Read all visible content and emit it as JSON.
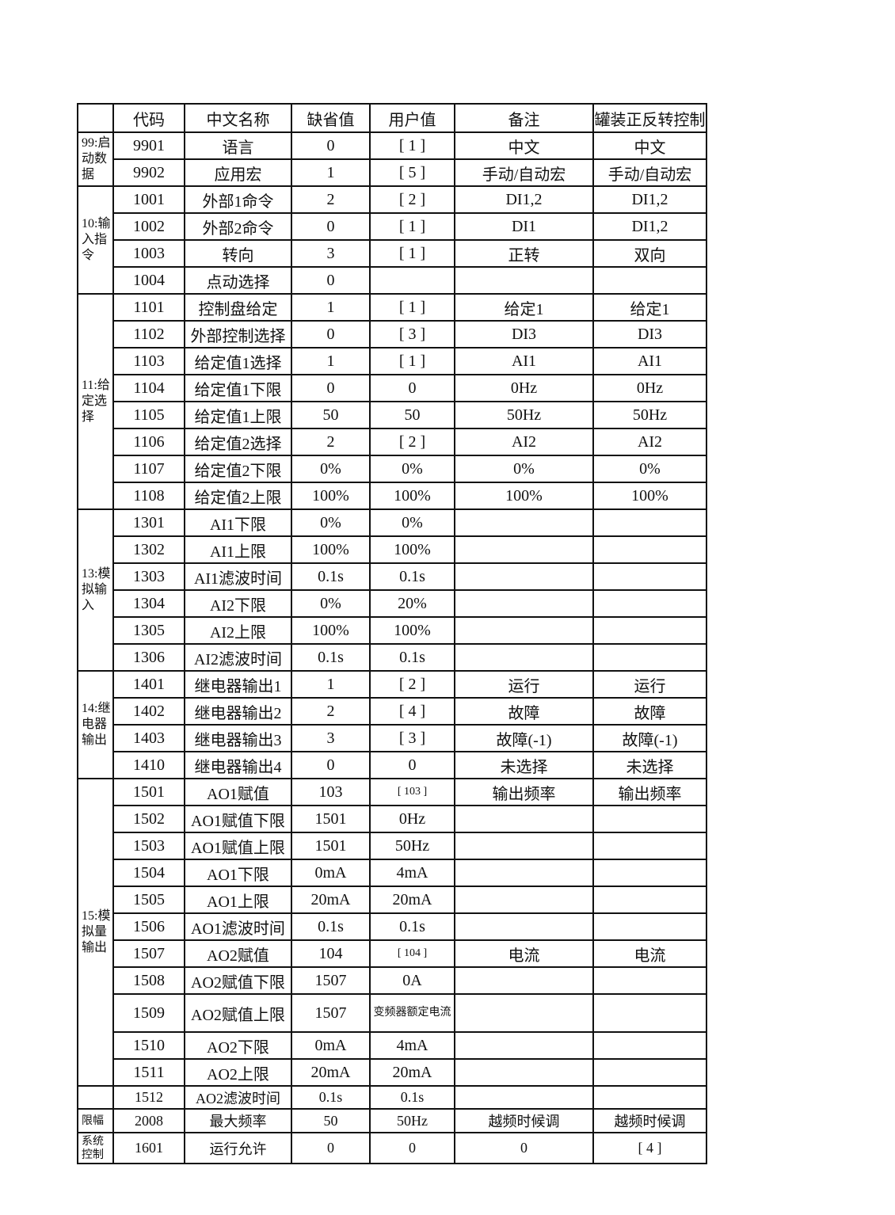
{
  "headers": [
    "",
    "代码",
    "中文名称",
    "缺省值",
    "用户值",
    "备注",
    "罐装正反转控制"
  ],
  "groups": [
    {
      "label": "99:启动数据",
      "rows": [
        [
          "9901",
          "语言",
          "0",
          "[ 1 ]",
          "中文",
          "中文"
        ],
        [
          "9902",
          "应用宏",
          "1",
          "[ 5 ]",
          "手动/自动宏",
          "手动/自动宏"
        ]
      ]
    },
    {
      "label": "10:输入指令",
      "rows": [
        [
          "1001",
          "外部1命令",
          "2",
          "[ 2 ]",
          "DI1,2",
          "DI1,2"
        ],
        [
          "1002",
          "外部2命令",
          "0",
          "[ 1 ]",
          "DI1",
          "DI1,2"
        ],
        [
          "1003",
          "转向",
          "3",
          "[ 1 ]",
          "正转",
          "双向"
        ],
        [
          "1004",
          "点动选择",
          "0",
          "",
          "",
          ""
        ]
      ]
    },
    {
      "label": "11:给定选择",
      "rows": [
        [
          "1101",
          "控制盘给定",
          "1",
          "[ 1 ]",
          "给定1",
          "给定1"
        ],
        [
          "1102",
          "外部控制选择",
          "0",
          "[ 3 ]",
          "DI3",
          "DI3"
        ],
        [
          "1103",
          "给定值1选择",
          "1",
          "[ 1 ]",
          "AI1",
          "AI1"
        ],
        [
          "1104",
          "给定值1下限",
          "0",
          "0",
          "0Hz",
          "0Hz"
        ],
        [
          "1105",
          "给定值1上限",
          "50",
          "50",
          "50Hz",
          "50Hz"
        ],
        [
          "1106",
          "给定值2选择",
          "2",
          "[ 2 ]",
          "AI2",
          "AI2"
        ],
        [
          "1107",
          "给定值2下限",
          "0%",
          "0%",
          "0%",
          "0%"
        ],
        [
          "1108",
          "给定值2上限",
          "100%",
          "100%",
          "100%",
          "100%"
        ]
      ]
    },
    {
      "label": "13:模拟输入",
      "rows": [
        [
          "1301",
          "AI1下限",
          "0%",
          "0%",
          "",
          ""
        ],
        [
          "1302",
          "AI1上限",
          "100%",
          "100%",
          "",
          ""
        ],
        [
          "1303",
          "AI1滤波时间",
          "0.1s",
          "0.1s",
          "",
          ""
        ],
        [
          "1304",
          "AI2下限",
          "0%",
          "20%",
          "",
          ""
        ],
        [
          "1305",
          "AI2上限",
          "100%",
          "100%",
          "",
          ""
        ],
        [
          "1306",
          "AI2滤波时间",
          "0.1s",
          "0.1s",
          "",
          ""
        ]
      ]
    },
    {
      "label": "14:继电器输出",
      "rows": [
        [
          "1401",
          "继电器输出1",
          "1",
          "[ 2 ]",
          "运行",
          "运行"
        ],
        [
          "1402",
          "继电器输出2",
          "2",
          "[ 4 ]",
          "故障",
          "故障"
        ],
        [
          "1403",
          "继电器输出3",
          "3",
          "[ 3 ]",
          "故障(-1)",
          "故障(-1)"
        ],
        [
          "1410",
          "继电器输出4",
          "0",
          "0",
          "未选择",
          "未选择"
        ]
      ]
    },
    {
      "label": "15:模拟量输出",
      "rows": [
        [
          "1501",
          "AO1赋值",
          "103",
          "[ 103 ]",
          "输出频率",
          "输出频率"
        ],
        [
          "1502",
          "AO1赋值下限",
          "1501",
          "0Hz",
          "",
          ""
        ],
        [
          "1503",
          "AO1赋值上限",
          "1501",
          "50Hz",
          "",
          ""
        ],
        [
          "1504",
          "AO1下限",
          "0mA",
          "4mA",
          "",
          ""
        ],
        [
          "1505",
          "AO1上限",
          "20mA",
          "20mA",
          "",
          ""
        ],
        [
          "1506",
          "AO1滤波时间",
          "0.1s",
          "0.1s",
          "",
          ""
        ],
        [
          "1507",
          "AO2赋值",
          "104",
          "[ 104 ]",
          "电流",
          "电流"
        ],
        [
          "1508",
          "AO2赋值下限",
          "1507",
          "0A",
          "",
          ""
        ],
        [
          "1509",
          "AO2赋值上限",
          "1507",
          "变频器额定电流",
          "",
          ""
        ],
        [
          "1510",
          "AO2下限",
          "0mA",
          "4mA",
          "",
          ""
        ],
        [
          "1511",
          "AO2上限",
          "20mA",
          "20mA",
          "",
          ""
        ]
      ]
    },
    {
      "label": "",
      "rows": [
        [
          "1512",
          "AO2滤波时间",
          "0.1s",
          "0.1s",
          "",
          ""
        ]
      ]
    },
    {
      "label": "限幅",
      "rows": [
        [
          "2008",
          "最大频率",
          "50",
          "50Hz",
          "越频时候调",
          "越频时候调"
        ]
      ]
    },
    {
      "label": "系统控制",
      "rows": [
        [
          "1601",
          "运行允许",
          "0",
          "0",
          "0",
          "[ 4 ]"
        ]
      ]
    }
  ]
}
